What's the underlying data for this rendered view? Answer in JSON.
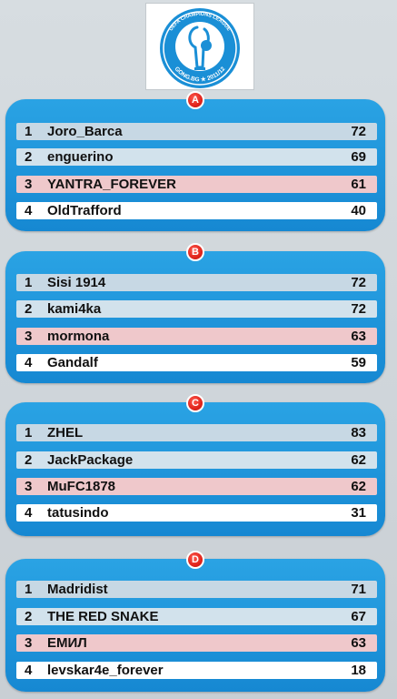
{
  "logo": {
    "top_text": "UEFA CHAMPIONS LEAGUE",
    "bottom_text": "GONG.BG ★ 2011/12"
  },
  "groups": [
    {
      "letter": "A",
      "rows": [
        {
          "rank": "1",
          "name": "Joro_Barca",
          "points": "72"
        },
        {
          "rank": "2",
          "name": "enguerino",
          "points": "69"
        },
        {
          "rank": "3",
          "name": "YANTRA_FOREVER",
          "points": "61"
        },
        {
          "rank": "4",
          "name": "OldTrafford",
          "points": "40"
        }
      ]
    },
    {
      "letter": "B",
      "rows": [
        {
          "rank": "1",
          "name": "Sisi 1914",
          "points": "72"
        },
        {
          "rank": "2",
          "name": "kami4ka",
          "points": "72"
        },
        {
          "rank": "3",
          "name": "mormona",
          "points": "63"
        },
        {
          "rank": "4",
          "name": "Gandalf",
          "points": "59"
        }
      ]
    },
    {
      "letter": "C",
      "rows": [
        {
          "rank": "1",
          "name": "ZHEL",
          "points": "83"
        },
        {
          "rank": "2",
          "name": "JackPackage",
          "points": "62"
        },
        {
          "rank": "3",
          "name": "MuFC1878",
          "points": "62"
        },
        {
          "rank": "4",
          "name": "tatusindo",
          "points": "31"
        }
      ]
    },
    {
      "letter": "D",
      "rows": [
        {
          "rank": "1",
          "name": "Madridist",
          "points": "71"
        },
        {
          "rank": "2",
          "name": "THE RED SNAKE",
          "points": "67"
        },
        {
          "rank": "3",
          "name": "ЕМИЛ",
          "points": "63"
        },
        {
          "rank": "4",
          "name": "levskar4e_forever",
          "points": "18"
        }
      ]
    }
  ],
  "colors": {
    "panel": "#1f97dc",
    "badge": "#e0241c",
    "row_first": "#c7d8e4",
    "row_second": "#d2e2ec",
    "row_third": "#efc8cb",
    "row_fourth": "#ffffff"
  }
}
